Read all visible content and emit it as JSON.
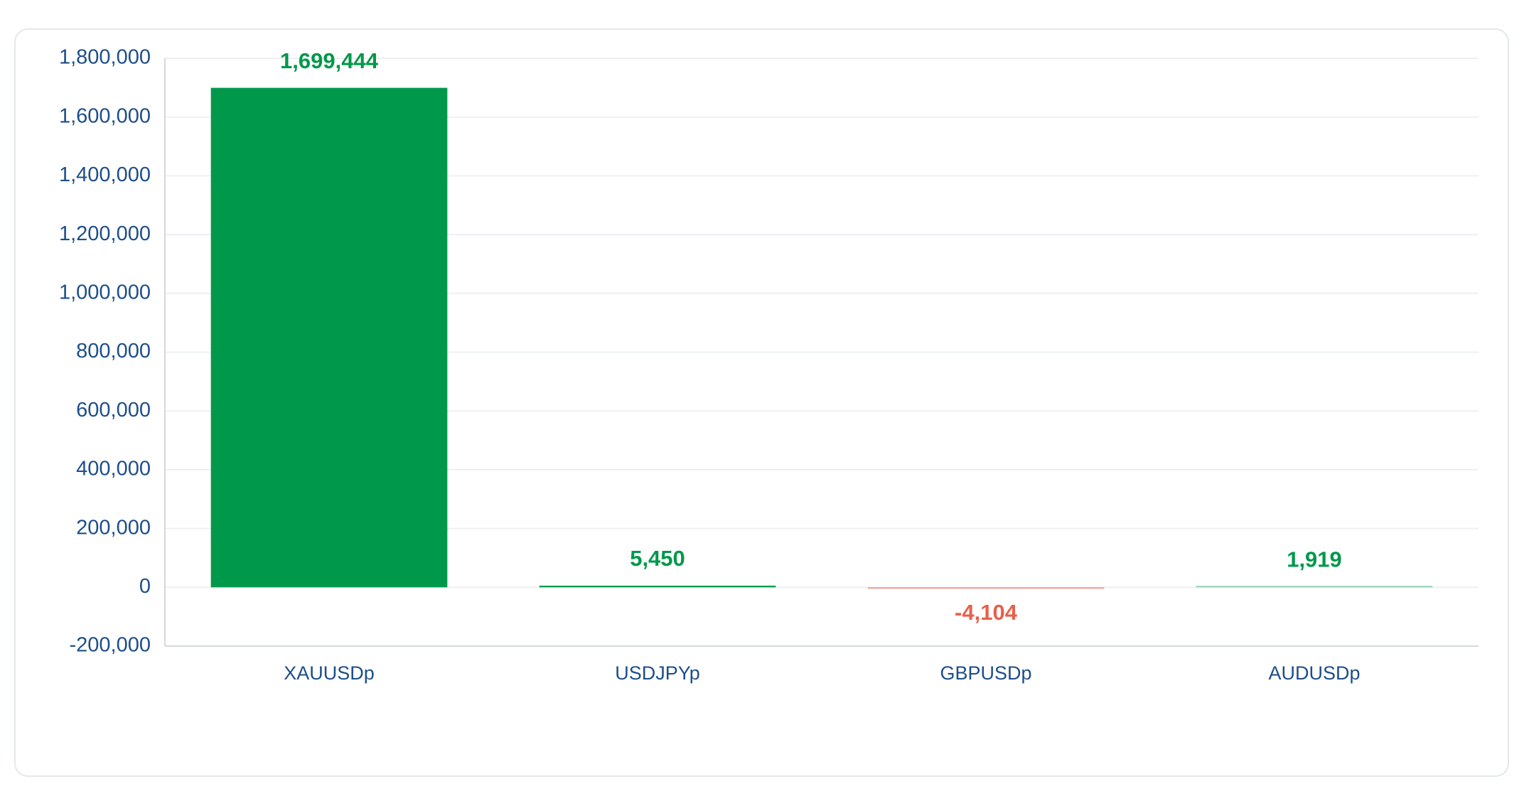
{
  "chart_data": {
    "type": "bar",
    "categories": [
      "XAUUSDp",
      "USDJPYp",
      "GBPUSDp",
      "AUDUSDp"
    ],
    "values": [
      1699444,
      5450,
      -4104,
      1919
    ],
    "value_labels": [
      "1,699,444",
      "5,450",
      "-4,104",
      "1,919"
    ],
    "positive_color": "#00984a",
    "negative_color": "#e8604c",
    "ylim": [
      -200000,
      1800000
    ],
    "yticks": [
      {
        "value": -200000,
        "label": "-200,000"
      },
      0,
      {
        "value": 200000,
        "label": "200,000"
      },
      {
        "value": 400000,
        "label": "400,000"
      },
      {
        "value": 600000,
        "label": "600,000"
      },
      {
        "value": 800000,
        "label": "800,000"
      },
      {
        "value": 1000000,
        "label": "1,000,000"
      },
      {
        "value": 1200000,
        "label": "1,200,000"
      },
      {
        "value": 1400000,
        "label": "1,400,000"
      },
      {
        "value": 1600000,
        "label": "1,600,000"
      },
      {
        "value": 1800000,
        "label": "1,800,000"
      }
    ],
    "grid": true
  }
}
